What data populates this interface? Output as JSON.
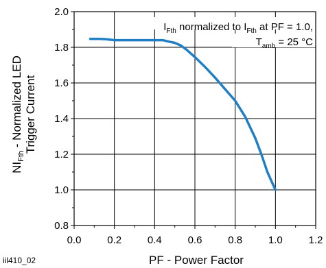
{
  "chart_data": {
    "type": "line",
    "xlabel": "PF - Power Factor",
    "ylabel_parts": {
      "line1_main": "NI",
      "line1_sub": "Fth",
      "line1_rest": " - Normalized LED",
      "line2": "Trigger Current"
    },
    "xlim": [
      0.0,
      1.2
    ],
    "ylim": [
      0.8,
      2.0
    ],
    "xticks": [
      "0.0",
      "0.2",
      "0.4",
      "0.6",
      "0.8",
      "1.0",
      "1.2"
    ],
    "yticks": [
      "0.8",
      "1.0",
      "1.2",
      "1.4",
      "1.6",
      "1.8",
      "2.0"
    ],
    "grid": true,
    "series": [
      {
        "color": "#1f7fc6",
        "x": [
          0.08,
          0.13,
          0.16,
          0.2,
          0.3,
          0.4,
          0.44,
          0.47,
          0.5,
          0.53,
          0.56,
          0.6,
          0.65,
          0.7,
          0.75,
          0.8,
          0.85,
          0.9,
          0.93,
          0.96,
          1.0
        ],
        "y": [
          1.847,
          1.847,
          1.845,
          1.84,
          1.84,
          1.84,
          1.84,
          1.832,
          1.825,
          1.81,
          1.785,
          1.745,
          1.69,
          1.63,
          1.565,
          1.5,
          1.41,
          1.29,
          1.2,
          1.1,
          1.0
        ]
      }
    ],
    "annotation": {
      "l1_pre": "I",
      "l1_sub": "Fth",
      "l1_mid": " normalized to I",
      "l1_sub2": "Fth",
      "l1_post": " at PF = 1.0,",
      "l2_pre": "T",
      "l2_sub": "amb",
      "l2_post": " = 25 °C"
    },
    "figure_id": "iil410_02"
  }
}
